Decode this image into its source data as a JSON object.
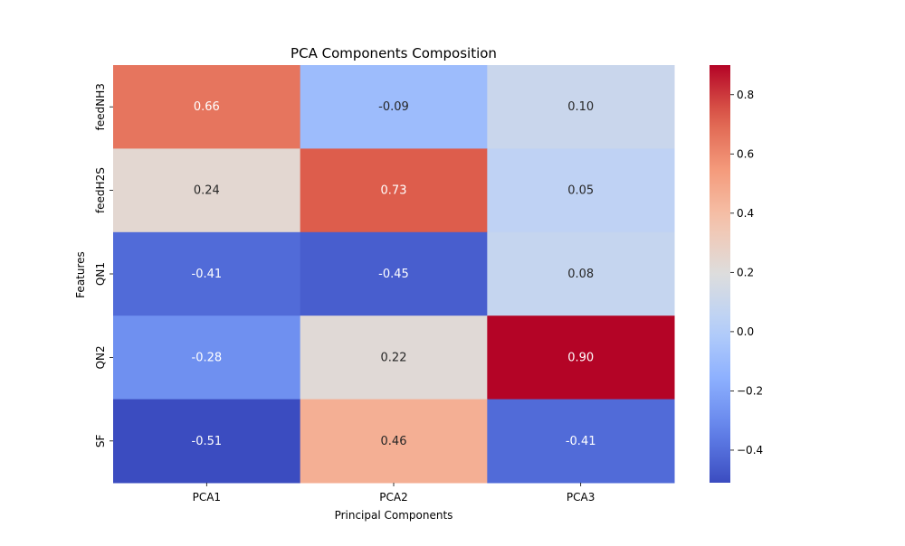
{
  "chart_data": {
    "type": "heatmap",
    "title": "PCA Components Composition",
    "xlabel": "Principal Components",
    "ylabel": "Features",
    "x_categories": [
      "PCA1",
      "PCA2",
      "PCA3"
    ],
    "y_categories": [
      "feedNH3",
      "feedH2S",
      "QN1",
      "QN2",
      "SF"
    ],
    "values": [
      [
        0.66,
        -0.09,
        0.1
      ],
      [
        0.24,
        0.73,
        0.05
      ],
      [
        -0.41,
        -0.45,
        0.08
      ],
      [
        -0.28,
        0.22,
        0.9
      ],
      [
        -0.51,
        0.46,
        -0.41
      ]
    ],
    "value_labels": [
      [
        "0.66",
        "-0.09",
        "0.10"
      ],
      [
        "0.24",
        "0.73",
        "0.05"
      ],
      [
        "-0.41",
        "-0.45",
        "0.08"
      ],
      [
        "-0.28",
        "0.22",
        "0.90"
      ],
      [
        "-0.51",
        "0.46",
        "-0.41"
      ]
    ],
    "colormap": "coolwarm",
    "vmin": -0.51,
    "vmax": 0.9,
    "colorbar": {
      "ticks": [
        -0.4,
        -0.2,
        0.0,
        0.2,
        0.4,
        0.6,
        0.8
      ],
      "tick_labels": [
        "−0.4",
        "−0.2",
        "0.0",
        "0.2",
        "0.4",
        "0.6",
        "0.8"
      ]
    }
  }
}
